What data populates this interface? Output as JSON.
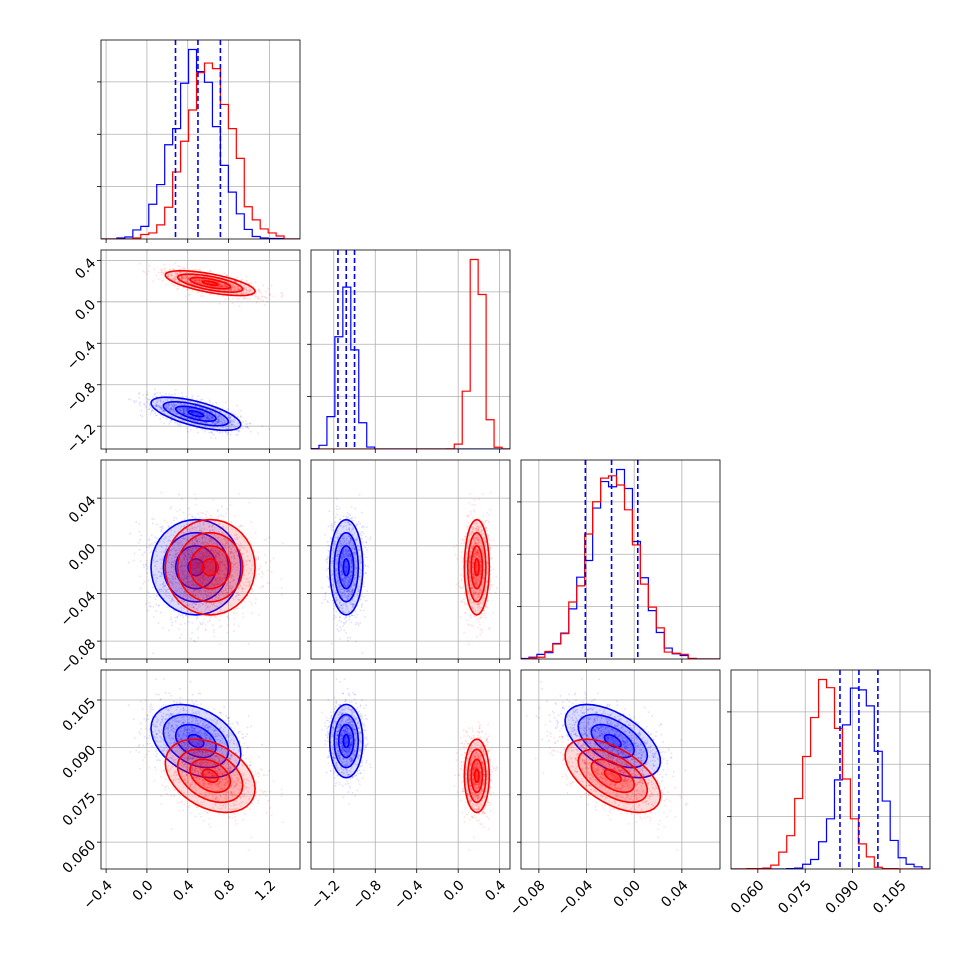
{
  "colors": {
    "series_a": "#0000ff",
    "series_b": "#ff0000"
  },
  "chart_data": {
    "type": "corner",
    "n_params": 4,
    "series": [
      {
        "color": "#0000ff",
        "means": [
          0.48,
          -1.08,
          -0.018,
          0.092
        ],
        "sds": [
          0.22,
          0.08,
          0.02,
          0.0058
        ],
        "corr": [
          [
            1,
            -0.65,
            0.0,
            -0.35
          ],
          [
            -0.65,
            1,
            0.0,
            0.0
          ],
          [
            0.0,
            0.0,
            1,
            -0.55
          ],
          [
            -0.35,
            0.0,
            -0.55,
            1
          ]
        ]
      },
      {
        "color": "#ff0000",
        "means": [
          0.62,
          0.18,
          -0.018,
          0.081
        ],
        "sds": [
          0.22,
          0.06,
          0.02,
          0.0058
        ],
        "corr": [
          [
            1,
            -0.65,
            0.0,
            -0.35
          ],
          [
            -0.65,
            1,
            0.0,
            0.0
          ],
          [
            0.0,
            0.0,
            1,
            -0.55
          ],
          [
            -0.35,
            0.0,
            -0.55,
            1
          ]
        ]
      }
    ],
    "quantile_lines": [
      [
        0.28,
        0.5,
        0.72
      ],
      [
        -1.16,
        -1.08,
        -1.0
      ],
      [
        -0.041,
        -0.019,
        0.003
      ],
      [
        0.086,
        0.092,
        0.098
      ]
    ],
    "axes": [
      {
        "range": [
          -0.45,
          1.5
        ],
        "ticks": [
          -0.4,
          0.0,
          0.4,
          0.8,
          1.2
        ],
        "tick_labels": [
          "−0.4",
          "0.0",
          "0.4",
          "0.8",
          "1.2"
        ]
      },
      {
        "range": [
          -1.42,
          0.5
        ],
        "ticks": [
          -1.2,
          -0.8,
          -0.4,
          0.0,
          0.4
        ],
        "tick_labels": [
          "−1.2",
          "−0.8",
          "−0.4",
          "0.0",
          "0.4"
        ]
      },
      {
        "range": [
          -0.095,
          0.072
        ],
        "ticks": [
          -0.08,
          -0.04,
          0.0,
          0.04
        ],
        "tick_labels": [
          "−0.08",
          "−0.04",
          "0.00",
          "0.04"
        ]
      },
      {
        "range": [
          0.0515,
          0.1145
        ],
        "ticks": [
          0.06,
          0.075,
          0.09,
          0.105
        ],
        "tick_labels": [
          "0.060",
          "0.075",
          "0.090",
          "0.105"
        ]
      }
    ],
    "grid": true,
    "bins": 25
  }
}
